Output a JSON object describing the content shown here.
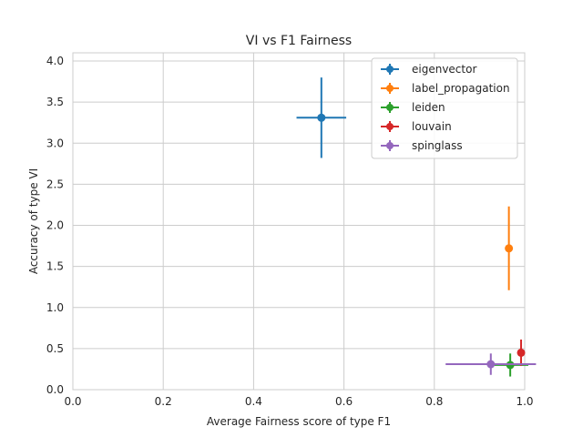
{
  "chart_data": {
    "type": "scatter",
    "title": "VI vs F1 Fairness",
    "xlabel": "Average Fairness score of type F1",
    "ylabel": "Accuracy of type VI",
    "xlim": [
      0.0,
      1.0
    ],
    "ylim": [
      0.0,
      4.1
    ],
    "xticks": [
      "0.0",
      "0.2",
      "0.4",
      "0.6",
      "0.8",
      "1.0"
    ],
    "yticks": [
      "0.0",
      "0.5",
      "1.0",
      "1.5",
      "2.0",
      "2.5",
      "3.0",
      "3.5",
      "4.0"
    ],
    "grid": true,
    "legend_position": "top-right",
    "series": [
      {
        "name": "eigenvector",
        "color": "#1f77b4",
        "x": 0.55,
        "y": 3.31,
        "xerr": 0.055,
        "yerr": 0.49
      },
      {
        "name": "label_propagation",
        "color": "#ff7f0e",
        "x": 0.965,
        "y": 1.72,
        "xerr": 0.0,
        "yerr": 0.51
      },
      {
        "name": "leiden",
        "color": "#2ca02c",
        "x": 0.968,
        "y": 0.3,
        "xerr": 0.04,
        "yerr": 0.14
      },
      {
        "name": "louvain",
        "color": "#d62728",
        "x": 0.992,
        "y": 0.45,
        "xerr": 0.0,
        "yerr": 0.16
      },
      {
        "name": "spinglass",
        "color": "#9467bd",
        "x": 0.925,
        "y": 0.31,
        "xerr": 0.1,
        "yerr": 0.13
      }
    ]
  }
}
